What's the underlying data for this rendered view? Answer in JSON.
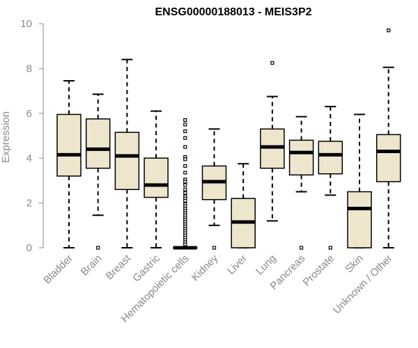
{
  "chart_data": {
    "type": "boxplot",
    "title": "ENSG00000188013 - MEIS3P2",
    "xlabel": "",
    "ylabel": "Expression",
    "ylim": [
      0,
      10
    ],
    "yticks": [
      0,
      2,
      4,
      6,
      8,
      10
    ],
    "colors": {
      "box_fill": "#ede6cc",
      "stroke": "#000000",
      "axis": "#888888"
    },
    "categories": [
      "Bladder",
      "Brain",
      "Breast",
      "Gastric",
      "Hematopoietic cells",
      "Kidney",
      "Liver",
      "Lung",
      "Pancreas",
      "Prostate",
      "Skin",
      "Unknown / Other"
    ],
    "boxes": [
      {
        "category": "Bladder",
        "min": 0.0,
        "q1": 3.2,
        "median": 4.15,
        "q3": 5.95,
        "max": 7.45,
        "outliers": []
      },
      {
        "category": "Brain",
        "min": 1.45,
        "q1": 3.55,
        "median": 4.4,
        "q3": 5.75,
        "max": 6.85,
        "outliers": [
          0.0
        ]
      },
      {
        "category": "Breast",
        "min": 0.0,
        "q1": 2.6,
        "median": 4.1,
        "q3": 5.15,
        "max": 8.4,
        "outliers": []
      },
      {
        "category": "Gastric",
        "min": 0.0,
        "q1": 2.25,
        "median": 2.8,
        "q3": 4.0,
        "max": 6.1,
        "outliers": []
      },
      {
        "category": "Hematopoietic cells",
        "min": 0.0,
        "q1": 0.0,
        "median": 0.0,
        "q3": 0.0,
        "max": 0.0,
        "outliers": [
          5.7,
          5.5,
          5.2,
          4.9,
          4.5,
          4.05,
          3.95,
          3.65,
          3.35,
          3.05,
          2.95,
          2.8,
          2.6,
          2.45,
          2.3,
          2.2,
          2.1,
          1.95,
          1.85,
          1.75,
          1.65,
          1.55,
          1.45,
          1.35,
          1.25,
          1.15,
          1.05,
          0.95,
          0.85,
          0.75,
          0.65,
          0.55,
          0.45,
          0.35,
          0.25,
          0.15
        ]
      },
      {
        "category": "Kidney",
        "min": 1.0,
        "q1": 2.15,
        "median": 2.95,
        "q3": 3.65,
        "max": 5.3,
        "outliers": [
          0.0
        ]
      },
      {
        "category": "Liver",
        "min": 0.0,
        "q1": 0.0,
        "median": 1.15,
        "q3": 2.2,
        "max": 3.75,
        "outliers": []
      },
      {
        "category": "Lung",
        "min": 1.2,
        "q1": 3.55,
        "median": 4.5,
        "q3": 5.3,
        "max": 6.75,
        "outliers": [
          8.25
        ]
      },
      {
        "category": "Pancreas",
        "min": 2.5,
        "q1": 3.25,
        "median": 4.25,
        "q3": 4.8,
        "max": 5.85,
        "outliers": [
          0.0
        ]
      },
      {
        "category": "Prostate",
        "min": 2.35,
        "q1": 3.3,
        "median": 4.15,
        "q3": 4.75,
        "max": 6.3,
        "outliers": [
          0.0
        ]
      },
      {
        "category": "Skin",
        "min": 0.0,
        "q1": 0.0,
        "median": 1.75,
        "q3": 2.5,
        "max": 5.95,
        "outliers": []
      },
      {
        "category": "Unknown / Other",
        "min": 0.0,
        "q1": 2.95,
        "median": 4.3,
        "q3": 5.05,
        "max": 8.05,
        "outliers": [
          9.7
        ]
      }
    ]
  }
}
